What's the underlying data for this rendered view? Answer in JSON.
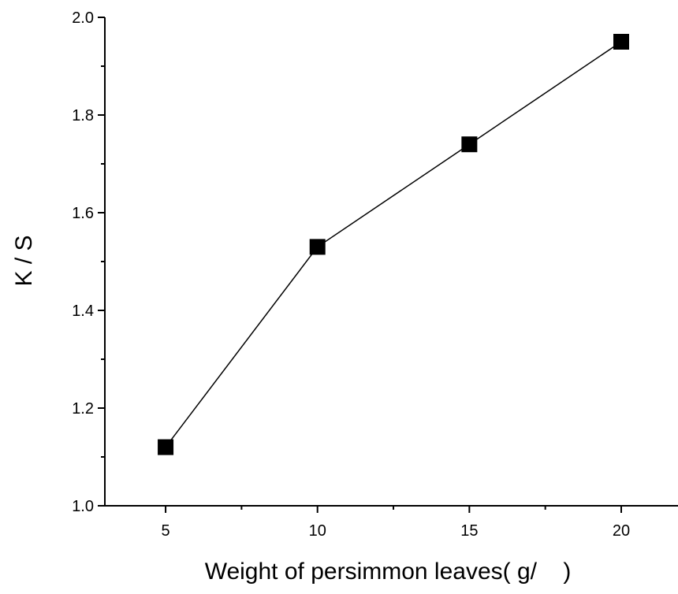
{
  "chart_data": {
    "type": "line",
    "x": [
      5,
      10,
      15,
      20
    ],
    "series": [
      {
        "values": [
          1.12,
          1.53,
          1.74,
          1.95
        ],
        "marker": "square",
        "color": "#000000"
      }
    ],
    "xlabel": "Weight of persimmon leaves( g/    )",
    "ylabel": "K / S",
    "xlim": [
      3,
      20
    ],
    "ylim": [
      1.0,
      2.0
    ],
    "xticks": [
      5,
      10,
      15,
      20
    ],
    "xtick_labels": [
      "5",
      "10",
      "15",
      "20"
    ],
    "yticks": [
      1.0,
      1.2,
      1.4,
      1.6,
      1.8,
      2.0
    ],
    "ytick_labels": [
      "1.0",
      "1.2",
      "1.4",
      "1.6",
      "1.8",
      "2.0"
    ],
    "grid": false,
    "legend": "none"
  }
}
